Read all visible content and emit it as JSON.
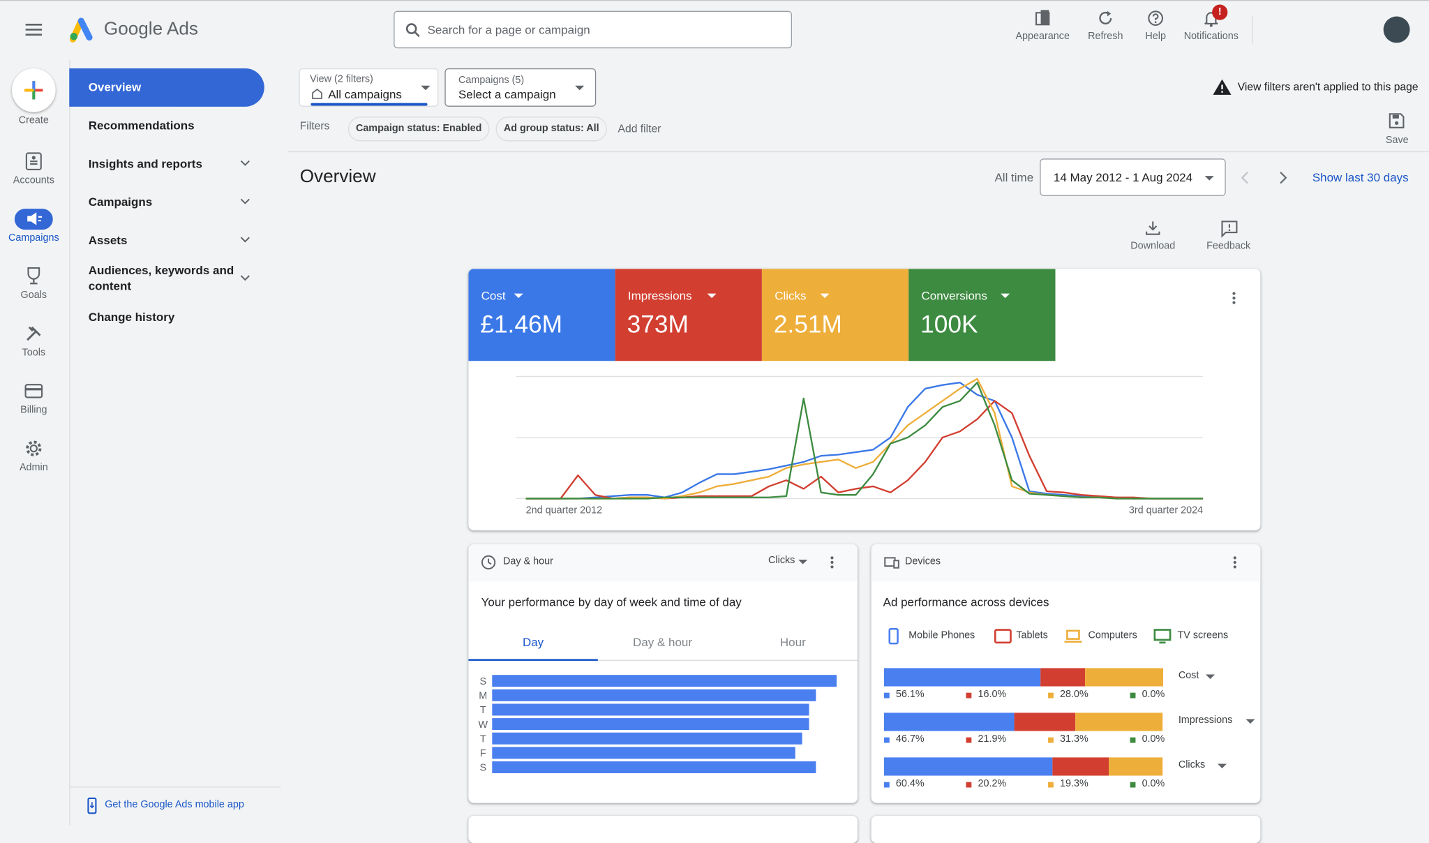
{
  "header": {
    "brand": "Google Ads",
    "search_placeholder": "Search for a page or campaign",
    "actions": [
      "Appearance",
      "Refresh",
      "Help",
      "Notifications"
    ],
    "notification_badge": "!"
  },
  "nav_rail": [
    "Create",
    "Accounts",
    "Campaigns",
    "Goals",
    "Tools",
    "Billing",
    "Admin"
  ],
  "side_menu": {
    "items": [
      "Overview",
      "Recommendations",
      "Insights and reports",
      "Campaigns",
      "Assets",
      "Audiences, keywords and content",
      "Change history"
    ],
    "footer_link": "Get the Google Ads mobile app"
  },
  "filters": {
    "view_label": "View (2 filters)",
    "view_value": "All campaigns",
    "campaigns_label": "Campaigns (5)",
    "campaigns_value": "Select a campaign",
    "filters_label": "Filters",
    "chips": [
      "Campaign status: Enabled",
      "Ad group status: All"
    ],
    "add_filter": "Add filter",
    "notice": "View filters aren't applied to this page",
    "save": "Save"
  },
  "overview": {
    "title": "Overview",
    "range_label": "All time",
    "date_range": "14 May 2012 - 1 Aug 2024",
    "show_last": "Show last 30 days",
    "actions": [
      "Download",
      "Feedback"
    ]
  },
  "metrics": [
    {
      "name": "Cost",
      "value": "£1.46M",
      "color": "#3b78e7"
    },
    {
      "name": "Impressions",
      "value": "373M",
      "color": "#d23f31"
    },
    {
      "name": "Clicks",
      "value": "2.51M",
      "color": "#eeae3a"
    },
    {
      "name": "Conversions",
      "value": "100K",
      "color": "#3d8b40"
    }
  ],
  "overview_chart": {
    "type": "line",
    "x_labels": [
      "2nd quarter 2012",
      "3rd quarter 2024"
    ],
    "ylim": [
      0,
      100
    ],
    "yticks": [
      0,
      50,
      100
    ],
    "grid": true,
    "series": [
      {
        "color": "#3b78e7",
        "values": [
          0,
          0,
          0,
          0,
          1,
          2,
          3,
          3,
          1,
          5,
          13,
          20,
          20,
          22,
          24,
          27,
          30,
          35,
          36,
          38,
          40,
          50,
          75,
          90,
          93,
          95,
          85,
          80,
          50,
          6,
          4,
          3,
          2,
          1,
          1,
          0,
          0,
          0,
          0,
          0
        ]
      },
      {
        "color": "#d23f31",
        "values": [
          0,
          0,
          0,
          19,
          3,
          0,
          1,
          1,
          0,
          1,
          2,
          2,
          2,
          2,
          10,
          15,
          8,
          18,
          5,
          8,
          10,
          5,
          15,
          30,
          50,
          55,
          65,
          80,
          70,
          35,
          6,
          5,
          3,
          2,
          1,
          1,
          0,
          0,
          0,
          0
        ]
      },
      {
        "color": "#eeae3a",
        "values": [
          0,
          0,
          0,
          0,
          0,
          0,
          1,
          1,
          0,
          2,
          5,
          10,
          12,
          15,
          18,
          25,
          28,
          30,
          32,
          25,
          30,
          45,
          60,
          70,
          80,
          90,
          98,
          70,
          10,
          5,
          3,
          2,
          1,
          1,
          0,
          0,
          0,
          0,
          0,
          0
        ]
      },
      {
        "color": "#3d8b40",
        "values": [
          0,
          0,
          0,
          0,
          0,
          0,
          0,
          0,
          1,
          1,
          1,
          1,
          1,
          1,
          1,
          2,
          82,
          5,
          3,
          3,
          20,
          45,
          50,
          60,
          75,
          80,
          95,
          60,
          15,
          4,
          3,
          2,
          1,
          1,
          0,
          0,
          0,
          0,
          0,
          0
        ]
      }
    ]
  },
  "day_hour": {
    "title": "Day & hour",
    "metric": "Clicks",
    "subtitle": "Your performance by day of week and time of day",
    "tabs": [
      "Day",
      "Day & hour",
      "Hour"
    ],
    "chart": {
      "type": "bar",
      "orientation": "horizontal",
      "color": "#4a7ff0",
      "categories": [
        "S",
        "M",
        "T",
        "W",
        "T",
        "F",
        "S"
      ],
      "values": [
        100,
        94,
        92,
        92,
        90,
        88,
        94
      ],
      "xlim": [
        0,
        100
      ]
    }
  },
  "devices": {
    "title": "Devices",
    "subtitle": "Ad performance across devices",
    "legend": [
      {
        "name": "Mobile Phones",
        "color": "#4a7ff0"
      },
      {
        "name": "Tablets",
        "color": "#d23f31"
      },
      {
        "name": "Computers",
        "color": "#eeae3a"
      },
      {
        "name": "TV screens",
        "color": "#3d8b40"
      }
    ],
    "xlim": [
      0,
      100
    ],
    "rows": [
      {
        "metric": "Cost",
        "values": [
          56.1,
          16.0,
          28.0,
          0.0
        ],
        "value_labels": [
          "56.1%",
          "16.0%",
          "28.0%",
          "0.0%"
        ]
      },
      {
        "metric": "Impressions",
        "values": [
          46.7,
          21.9,
          31.3,
          0.0
        ],
        "value_labels": [
          "46.7%",
          "21.9%",
          "31.3%",
          "0.0%"
        ]
      },
      {
        "metric": "Clicks",
        "values": [
          60.4,
          20.2,
          19.3,
          0.0
        ],
        "value_labels": [
          "60.4%",
          "20.2%",
          "19.3%",
          "0.0%"
        ]
      }
    ]
  }
}
